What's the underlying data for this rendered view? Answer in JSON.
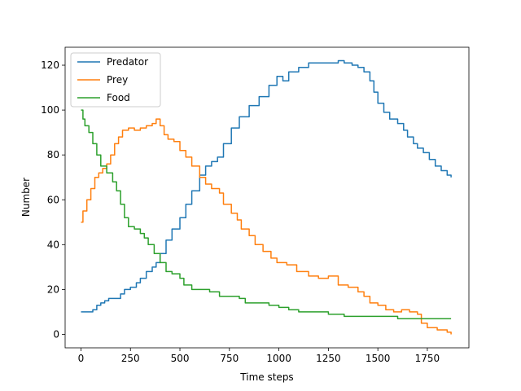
{
  "chart_data": {
    "type": "line",
    "title": "",
    "xlabel": "Time steps",
    "ylabel": "Number",
    "xlim": [
      -80,
      1960
    ],
    "ylim": [
      -6,
      128
    ],
    "xticks": [
      0,
      250,
      500,
      750,
      1000,
      1250,
      1500,
      1750
    ],
    "yticks": [
      0,
      20,
      40,
      60,
      80,
      100,
      120
    ],
    "grid": false,
    "legend_position": "top-left",
    "series": [
      {
        "name": "Predator",
        "color": "#1f77b4",
        "points": [
          [
            0,
            10
          ],
          [
            40,
            10
          ],
          [
            60,
            11
          ],
          [
            80,
            13
          ],
          [
            100,
            14
          ],
          [
            120,
            15
          ],
          [
            140,
            16
          ],
          [
            180,
            16
          ],
          [
            200,
            18
          ],
          [
            220,
            20
          ],
          [
            250,
            21
          ],
          [
            280,
            23
          ],
          [
            300,
            25
          ],
          [
            330,
            28
          ],
          [
            360,
            30
          ],
          [
            380,
            32
          ],
          [
            400,
            36
          ],
          [
            430,
            42
          ],
          [
            460,
            47
          ],
          [
            500,
            52
          ],
          [
            530,
            58
          ],
          [
            560,
            64
          ],
          [
            600,
            71
          ],
          [
            630,
            75
          ],
          [
            660,
            77
          ],
          [
            690,
            79
          ],
          [
            720,
            85
          ],
          [
            760,
            92
          ],
          [
            800,
            97
          ],
          [
            850,
            102
          ],
          [
            900,
            106
          ],
          [
            950,
            111
          ],
          [
            990,
            115
          ],
          [
            1020,
            113
          ],
          [
            1050,
            117
          ],
          [
            1100,
            119
          ],
          [
            1150,
            121
          ],
          [
            1200,
            121
          ],
          [
            1250,
            121
          ],
          [
            1300,
            122
          ],
          [
            1330,
            121
          ],
          [
            1370,
            120
          ],
          [
            1400,
            119
          ],
          [
            1430,
            117
          ],
          [
            1460,
            113
          ],
          [
            1480,
            108
          ],
          [
            1500,
            103
          ],
          [
            1530,
            99
          ],
          [
            1560,
            96
          ],
          [
            1600,
            94
          ],
          [
            1630,
            91
          ],
          [
            1650,
            88
          ],
          [
            1680,
            85
          ],
          [
            1700,
            83
          ],
          [
            1730,
            81
          ],
          [
            1760,
            78
          ],
          [
            1790,
            75
          ],
          [
            1820,
            73
          ],
          [
            1850,
            71
          ],
          [
            1870,
            70
          ]
        ]
      },
      {
        "name": "Prey",
        "color": "#ff7f0e",
        "points": [
          [
            0,
            50
          ],
          [
            10,
            55
          ],
          [
            30,
            60
          ],
          [
            50,
            65
          ],
          [
            70,
            70
          ],
          [
            90,
            72
          ],
          [
            110,
            74
          ],
          [
            130,
            76
          ],
          [
            150,
            80
          ],
          [
            170,
            85
          ],
          [
            190,
            88
          ],
          [
            210,
            91
          ],
          [
            240,
            92
          ],
          [
            270,
            91
          ],
          [
            300,
            92
          ],
          [
            330,
            93
          ],
          [
            360,
            94
          ],
          [
            380,
            96
          ],
          [
            400,
            93
          ],
          [
            420,
            89
          ],
          [
            440,
            87
          ],
          [
            470,
            86
          ],
          [
            500,
            82
          ],
          [
            530,
            79
          ],
          [
            560,
            75
          ],
          [
            600,
            70
          ],
          [
            630,
            67
          ],
          [
            660,
            65
          ],
          [
            700,
            63
          ],
          [
            720,
            58
          ],
          [
            760,
            54
          ],
          [
            790,
            51
          ],
          [
            810,
            47
          ],
          [
            850,
            44
          ],
          [
            880,
            40
          ],
          [
            920,
            37
          ],
          [
            960,
            34
          ],
          [
            990,
            32
          ],
          [
            1040,
            31
          ],
          [
            1090,
            28
          ],
          [
            1150,
            26
          ],
          [
            1200,
            25
          ],
          [
            1250,
            26
          ],
          [
            1300,
            22
          ],
          [
            1350,
            21
          ],
          [
            1400,
            19
          ],
          [
            1430,
            17
          ],
          [
            1460,
            14
          ],
          [
            1500,
            13
          ],
          [
            1540,
            11
          ],
          [
            1580,
            10
          ],
          [
            1620,
            11
          ],
          [
            1660,
            10
          ],
          [
            1700,
            9
          ],
          [
            1720,
            5
          ],
          [
            1750,
            3
          ],
          [
            1800,
            2
          ],
          [
            1850,
            1
          ],
          [
            1870,
            0
          ]
        ]
      },
      {
        "name": "Food",
        "color": "#2ca02c",
        "points": [
          [
            0,
            100
          ],
          [
            10,
            96
          ],
          [
            20,
            93
          ],
          [
            40,
            90
          ],
          [
            60,
            85
          ],
          [
            80,
            80
          ],
          [
            100,
            75
          ],
          [
            130,
            72
          ],
          [
            160,
            68
          ],
          [
            180,
            64
          ],
          [
            200,
            58
          ],
          [
            220,
            52
          ],
          [
            240,
            48
          ],
          [
            270,
            47
          ],
          [
            300,
            45
          ],
          [
            320,
            43
          ],
          [
            340,
            40
          ],
          [
            370,
            36
          ],
          [
            400,
            32
          ],
          [
            430,
            28
          ],
          [
            460,
            27
          ],
          [
            500,
            25
          ],
          [
            520,
            22
          ],
          [
            560,
            20
          ],
          [
            600,
            20
          ],
          [
            650,
            19
          ],
          [
            700,
            17
          ],
          [
            750,
            17
          ],
          [
            800,
            16
          ],
          [
            830,
            14
          ],
          [
            900,
            14
          ],
          [
            950,
            13
          ],
          [
            1000,
            12
          ],
          [
            1050,
            11
          ],
          [
            1100,
            10
          ],
          [
            1150,
            10
          ],
          [
            1200,
            10
          ],
          [
            1250,
            9
          ],
          [
            1300,
            9
          ],
          [
            1330,
            8
          ],
          [
            1400,
            8
          ],
          [
            1450,
            8
          ],
          [
            1500,
            8
          ],
          [
            1550,
            8
          ],
          [
            1600,
            7
          ],
          [
            1700,
            7
          ],
          [
            1800,
            7
          ],
          [
            1870,
            7
          ]
        ]
      }
    ]
  }
}
